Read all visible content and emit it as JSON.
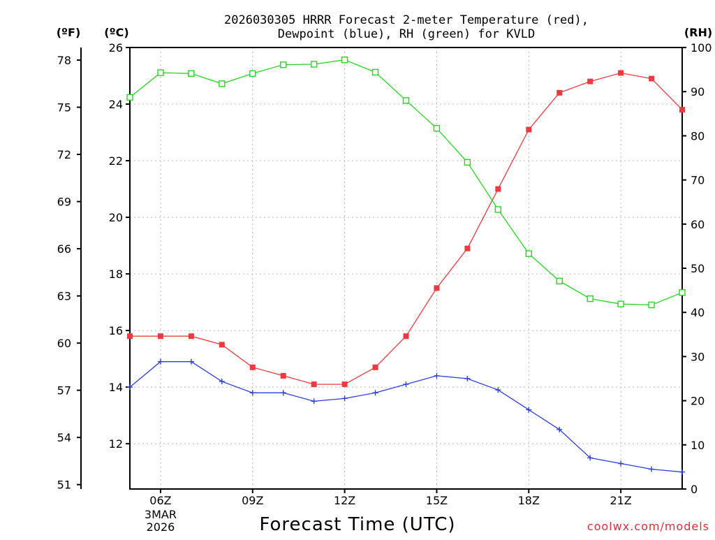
{
  "chart_data": {
    "type": "line",
    "title_line1": "2026030305 HRRR Forecast 2-meter Temperature (red),",
    "title_line2": "Dewpoint (blue), RH (green) for KVLD",
    "xlabel": "Forecast Time (UTC)",
    "left_unit_f": "(ºF)",
    "left_unit_c": "(ºC)",
    "right_unit": "(RH)",
    "credit": "coolwx.com/models",
    "hours": [
      5,
      6,
      7,
      8,
      9,
      10,
      11,
      12,
      13,
      14,
      15,
      16,
      17,
      18,
      19,
      20,
      21,
      22,
      23
    ],
    "xlim": [
      5,
      23
    ],
    "x_ticks": [
      {
        "hour": 6,
        "label": "06Z",
        "sub1": "3MAR",
        "sub2": "2026"
      },
      {
        "hour": 9,
        "label": "09Z"
      },
      {
        "hour": 12,
        "label": "12Z"
      },
      {
        "hour": 15,
        "label": "15Z"
      },
      {
        "hour": 18,
        "label": "18Z"
      },
      {
        "hour": 21,
        "label": "21Z"
      }
    ],
    "celsius_axis": {
      "range": [
        10.4,
        26
      ],
      "ticks": [
        12,
        14,
        16,
        18,
        20,
        22,
        24,
        26
      ]
    },
    "fahrenheit_ticks": [
      51,
      54,
      57,
      60,
      63,
      66,
      69,
      72,
      75,
      78
    ],
    "rh_axis": {
      "range": [
        0,
        100
      ],
      "ticks": [
        0,
        10,
        20,
        30,
        40,
        50,
        60,
        70,
        80,
        90,
        100
      ]
    },
    "series": [
      {
        "name": "Temperature",
        "axis": "celsius",
        "color": "#ee3a3e",
        "marker": "filled-square",
        "values": [
          15.8,
          15.8,
          15.8,
          15.5,
          14.7,
          14.4,
          14.1,
          14.1,
          14.7,
          15.8,
          17.5,
          18.9,
          21.0,
          23.1,
          24.4,
          24.8,
          25.1,
          24.9,
          23.8
        ]
      },
      {
        "name": "Dewpoint",
        "axis": "celsius",
        "color": "#2b3ee6",
        "marker": "plus",
        "values": [
          14.0,
          14.9,
          14.9,
          14.2,
          13.8,
          13.8,
          13.5,
          13.6,
          13.8,
          14.1,
          14.4,
          14.3,
          13.9,
          13.2,
          12.5,
          11.5,
          11.3,
          11.1,
          11.0
        ]
      },
      {
        "name": "RH",
        "axis": "rh",
        "color": "#22d81e",
        "marker": "open-square",
        "values": [
          88.7,
          94.3,
          94.1,
          91.8,
          94.1,
          96.1,
          96.2,
          97.2,
          94.4,
          88.0,
          81.7,
          74.0,
          63.3,
          53.3,
          47.1,
          43.1,
          41.9,
          41.7,
          44.5
        ]
      }
    ]
  }
}
